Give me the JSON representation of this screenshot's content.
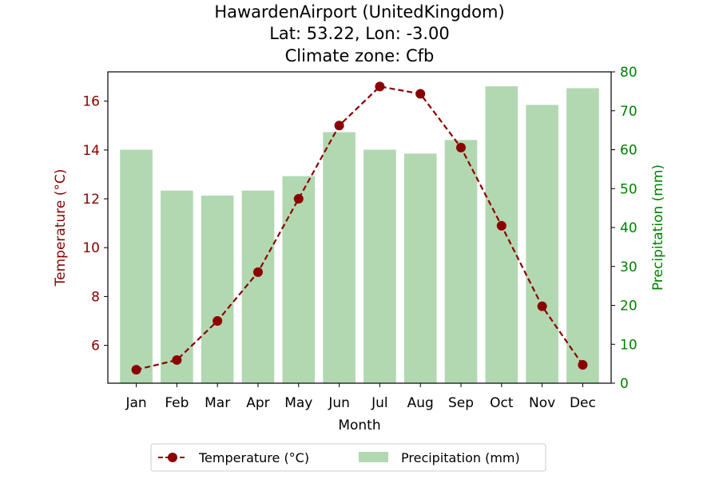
{
  "chart_data": {
    "type": "bar+line",
    "title_lines": [
      "HawardenAirport (UnitedKingdom)",
      "Lat: 53.22, Lon: -3.00",
      "Climate zone: Cfb"
    ],
    "xlabel": "Month",
    "categories": [
      "Jan",
      "Feb",
      "Mar",
      "Apr",
      "May",
      "Jun",
      "Jul",
      "Aug",
      "Sep",
      "Oct",
      "Nov",
      "Dec"
    ],
    "left_axis": {
      "label": "Temperature (°C)",
      "ylim": [
        4.45,
        17.2
      ],
      "ticks": [
        "6",
        "8",
        "10",
        "12",
        "14",
        "16"
      ],
      "color": "#8b0000"
    },
    "right_axis": {
      "label": "Precipitation (mm)",
      "ylim": [
        0,
        80
      ],
      "ticks": [
        "0",
        "10",
        "20",
        "30",
        "40",
        "50",
        "60",
        "70",
        "80"
      ],
      "color": "#008000"
    },
    "series": [
      {
        "name": "Temperature (°C)",
        "kind": "line",
        "axis": "left",
        "color": "#8b0000",
        "style": "dashed with circle markers",
        "values": [
          5.0,
          5.4,
          7.0,
          9.0,
          12.0,
          15.0,
          16.6,
          16.3,
          14.1,
          10.9,
          7.6,
          5.2
        ]
      },
      {
        "name": "Precipitation (mm)",
        "kind": "bar",
        "axis": "right",
        "color": "#b2d8b2",
        "values": [
          60,
          49.5,
          48.2,
          49.5,
          53.2,
          64.5,
          60,
          59,
          62.5,
          76.3,
          71.5,
          75.8
        ]
      }
    ],
    "legend": {
      "position": "bottom-center",
      "entries": [
        "Temperature (°C)",
        "Precipitation (mm)"
      ]
    },
    "grid": false
  }
}
